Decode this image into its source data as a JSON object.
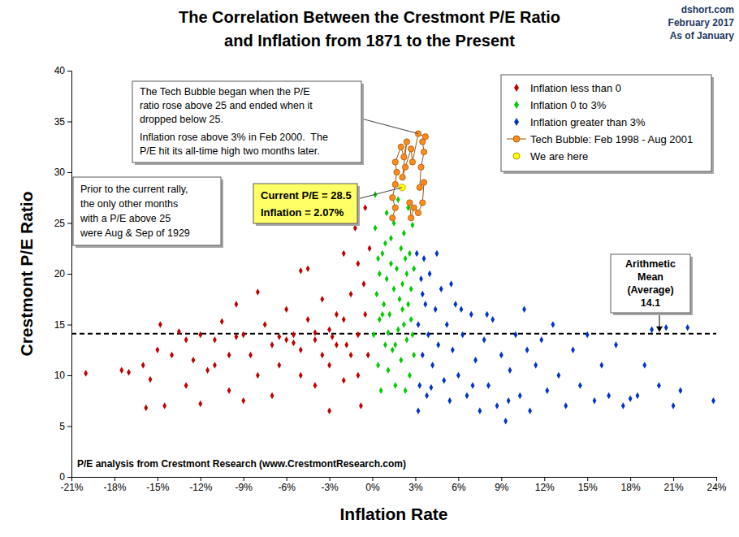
{
  "chart_data": {
    "type": "scatter",
    "title": [
      "The Correlation Between the Crestmont P/E Ratio",
      "and Inflation from 1871 to the Present"
    ],
    "source": [
      "dshort.com",
      "February 2017",
      "As of January"
    ],
    "x_label": "Inflation Rate",
    "y_label": "Crestmont P/E Ratio",
    "note": "P/E analysis from Crestmont Research (www.CrestmontResearch.com)",
    "xlim": [
      -21,
      24
    ],
    "xticks": [
      {
        "value": -21,
        "label": "-21%"
      },
      {
        "value": -18,
        "label": "-18%"
      },
      {
        "value": -15,
        "label": "-15%"
      },
      {
        "value": -12,
        "label": "-12%"
      },
      {
        "value": -9,
        "label": "-9%"
      },
      {
        "value": -6,
        "label": "-6%"
      },
      {
        "value": -3,
        "label": "-3%"
      },
      {
        "value": 0,
        "label": "0%"
      },
      {
        "value": 3,
        "label": "3%"
      },
      {
        "value": 6,
        "label": "6%"
      },
      {
        "value": 9,
        "label": "9%"
      },
      {
        "value": 12,
        "label": "12%"
      },
      {
        "value": 15,
        "label": "15%"
      },
      {
        "value": 18,
        "label": "18%"
      },
      {
        "value": 21,
        "label": "21%"
      },
      {
        "value": 24,
        "label": "24%"
      }
    ],
    "ylim": [
      0,
      40
    ],
    "yticks": [
      0,
      5,
      10,
      15,
      20,
      25,
      30,
      35,
      40
    ],
    "grid": false,
    "legend": "top-right",
    "mean": {
      "value": 14.1,
      "label_lines": [
        "Arithmetic",
        "Mean",
        "(Average)"
      ]
    },
    "annotations": {
      "tech_bubble": [
        "The Tech Bubble began when the P/E",
        "ratio rose above 25 and ended when it",
        "dropped below 25.",
        "Inflation rose above 3% in Feb 2000.  The",
        "P/E hit its all-time high two months later."
      ],
      "prior": [
        "Prior to the current rally,",
        "the only other months",
        "with a P/E above 25",
        "were Aug & Sep of 1929"
      ],
      "current": [
        "Current P/E = 28.5",
        "Inflation = 2.07%"
      ]
    },
    "series": [
      {
        "name": "Inflation less than 0",
        "color": "#c00000",
        "marker": "diamond",
        "x": [
          -20,
          -17.5,
          -17,
          -16,
          -15.8,
          -15.5,
          -15,
          -14.8,
          -14.5,
          -14,
          -13.5,
          -13,
          -12.5,
          -12,
          -12,
          -11.5,
          -11,
          -10.5,
          -10,
          -10,
          -9.5,
          -9,
          -9,
          -8.5,
          -8,
          -8,
          -7.5,
          -7,
          -7,
          -6.5,
          -6,
          -6,
          -5.5,
          -5,
          -5,
          -5,
          -4.5,
          -4.5,
          -4,
          -4,
          -3.5,
          -3.5,
          -3,
          -3,
          -3,
          -2.5,
          -2.5,
          -2,
          -2,
          -2,
          -1.5,
          -1.5,
          -1.2,
          -1,
          -1,
          -1,
          -0.8,
          -0.5,
          -0.5,
          -0.3,
          -13,
          -11,
          -9.5,
          -6.5,
          -5.5,
          -4,
          -2.8,
          -1.8,
          -0.6,
          -0.2
        ],
        "values": [
          10.2,
          10.5,
          10.3,
          11,
          6.8,
          9.6,
          12.5,
          15,
          7,
          12,
          14.3,
          9,
          11.5,
          14,
          7.2,
          10.5,
          13.5,
          15.3,
          12,
          8.5,
          17,
          14,
          7.5,
          12,
          10,
          18.2,
          15,
          13,
          8,
          11,
          13.5,
          16.5,
          14,
          12.5,
          10,
          20.3,
          15.5,
          20.5,
          13.5,
          9,
          17.5,
          12,
          14.5,
          11,
          6.5,
          16,
          13,
          22,
          15.5,
          9.5,
          12,
          18,
          24.5,
          14,
          10,
          21,
          7,
          26.5,
          16,
          12,
          13.5,
          11,
          13.8,
          13.8,
          13.2,
          14.2,
          13.8,
          13,
          19,
          22.5
        ]
      },
      {
        "name": "Inflation 0 to 3%",
        "color": "#00cc00",
        "marker": "diamond",
        "x": [
          0.1,
          0.2,
          0.3,
          0.4,
          0.5,
          0.5,
          0.6,
          0.7,
          0.8,
          0.9,
          1,
          1,
          1.1,
          1.2,
          1.3,
          1.3,
          1.4,
          1.5,
          1.5,
          1.6,
          1.7,
          1.8,
          1.8,
          1.9,
          2,
          2,
          2.1,
          2.2,
          2.2,
          2.3,
          2.4,
          2.4,
          2.5,
          2.5,
          2.6,
          2.6,
          2.7,
          2.8,
          2.8,
          2.9,
          0.2,
          0.4,
          0.7,
          1.1,
          1.6,
          2.1,
          2.3,
          2.7,
          2.9,
          0.9
        ],
        "values": [
          14,
          24.5,
          18,
          11,
          20,
          15.5,
          8.5,
          22,
          17,
          13,
          26,
          19.5,
          10.5,
          16,
          23.5,
          21,
          12.5,
          18.5,
          25,
          9,
          20.5,
          14.5,
          27.3,
          17.5,
          22.5,
          11.5,
          19,
          15,
          24,
          8.5,
          20,
          13.5,
          26.5,
          17,
          22,
          10,
          18.5,
          14,
          24.8,
          12,
          27.8,
          21.5,
          16,
          14.2,
          13,
          16.5,
          21.5,
          15.5,
          20.5,
          23
        ]
      },
      {
        "name": "Inflation greater than 3%",
        "color": "#0033cc",
        "marker": "diamond",
        "x": [
          3.1,
          3.2,
          3.3,
          3.4,
          3.5,
          3.6,
          3.7,
          3.8,
          3.9,
          4,
          4.2,
          4.4,
          4.6,
          4.8,
          5,
          5.2,
          5.4,
          5.6,
          5.8,
          6,
          6.3,
          6.6,
          6.9,
          7.2,
          7.5,
          7.8,
          8.1,
          8.4,
          8.7,
          9,
          9.3,
          9.6,
          10,
          10.3,
          10.6,
          11,
          11.4,
          11.8,
          12.2,
          12.6,
          13,
          13.5,
          14,
          14.5,
          15,
          15.5,
          16,
          16.5,
          17,
          17.5,
          18,
          18.5,
          19,
          19.5,
          20,
          20.5,
          21,
          21.5,
          22,
          23.8,
          3.2,
          3.5,
          4.1,
          4.5,
          5.5,
          6.2,
          7,
          8,
          9.5,
          10.8
        ],
        "values": [
          22,
          15,
          9,
          19.5,
          12,
          21.5,
          17,
          8,
          14,
          20,
          11,
          16.5,
          13,
          18.5,
          9.5,
          15,
          7.5,
          12.5,
          17,
          10,
          14,
          8,
          16,
          11.5,
          6.5,
          13.5,
          9,
          15.5,
          7,
          12,
          5.5,
          10.5,
          14,
          8,
          16.5,
          6.5,
          11,
          13.5,
          8.5,
          15,
          10,
          7,
          12.5,
          9,
          14,
          7.5,
          11,
          8,
          13,
          7,
          7.7,
          8,
          11,
          14.5,
          9,
          14.7,
          7,
          8.5,
          14.7,
          7.5,
          6.5,
          18,
          8.8,
          22,
          19,
          16.5,
          9,
          16,
          7.5,
          12.5
        ]
      },
      {
        "name": "Tech Bubble: Feb 1998 - Aug 2001",
        "color": "#ff8c1a",
        "marker": "circle",
        "type": "line",
        "x": [
          1.4,
          1.6,
          1.4,
          1.6,
          1.7,
          1.6,
          2,
          2.2,
          2.4,
          2.1,
          2.3,
          2.7,
          2.8,
          3.2,
          3.7,
          3.5,
          3.6,
          3.4,
          3.3,
          3.6,
          3.5,
          3.2,
          2.9,
          2.7,
          2.6
        ],
        "values": [
          25.5,
          26.5,
          27.5,
          28.8,
          30,
          31,
          32.5,
          31.5,
          33,
          29.5,
          30.5,
          32.3,
          31,
          33.8,
          33.5,
          33,
          32,
          30.5,
          28.5,
          29,
          27,
          26,
          26.5,
          25.5,
          27
        ]
      },
      {
        "name": "We are here",
        "color": "#ffff00",
        "marker": "circle",
        "x": [
          2.07
        ],
        "values": [
          28.5
        ]
      }
    ]
  }
}
